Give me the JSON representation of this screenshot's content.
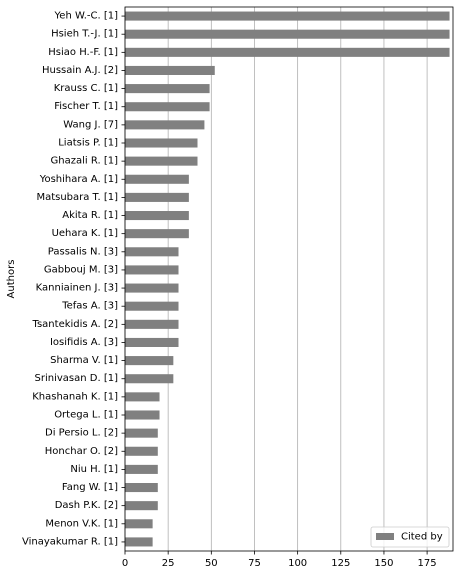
{
  "chart_data": {
    "type": "bar",
    "orientation": "horizontal",
    "categories": [
      "Yeh W.-C. [1]",
      "Hsieh T.-J. [1]",
      "Hsiao H.-F. [1]",
      "Hussain A.J. [2]",
      "Krauss C. [1]",
      "Fischer T. [1]",
      "Wang J. [7]",
      "Liatsis P. [1]",
      "Ghazali R. [1]",
      "Yoshihara A. [1]",
      "Matsubara T. [1]",
      "Akita R. [1]",
      "Uehara K. [1]",
      "Passalis N. [3]",
      "Gabbouj M. [3]",
      "Kanniainen J. [3]",
      "Tefas A. [3]",
      "Tsantekidis A. [2]",
      "Iosifidis A. [3]",
      "Sharma V. [1]",
      "Srinivasan D. [1]",
      "Khashanah K. [1]",
      "Ortega L. [1]",
      "Di Persio L. [2]",
      "Honchar O. [2]",
      "Niu H. [1]",
      "Fang W. [1]",
      "Dash P.K. [2]",
      "Menon V.K. [1]",
      "Vinayakumar R. [1]"
    ],
    "series": [
      {
        "name": "Cited by",
        "color": "#808080",
        "values": [
          188,
          188,
          188,
          52,
          49,
          49,
          46,
          42,
          42,
          37,
          37,
          37,
          37,
          31,
          31,
          31,
          31,
          31,
          31,
          28,
          28,
          20,
          20,
          19,
          19,
          19,
          19,
          19,
          16,
          16
        ]
      }
    ],
    "xlim": [
      0,
      190
    ],
    "xticks": [
      0,
      25,
      50,
      75,
      100,
      125,
      150,
      175
    ],
    "xlabel": "",
    "ylabel": "Authors",
    "title": "",
    "grid": "vertical",
    "legend": "bottom-right"
  }
}
